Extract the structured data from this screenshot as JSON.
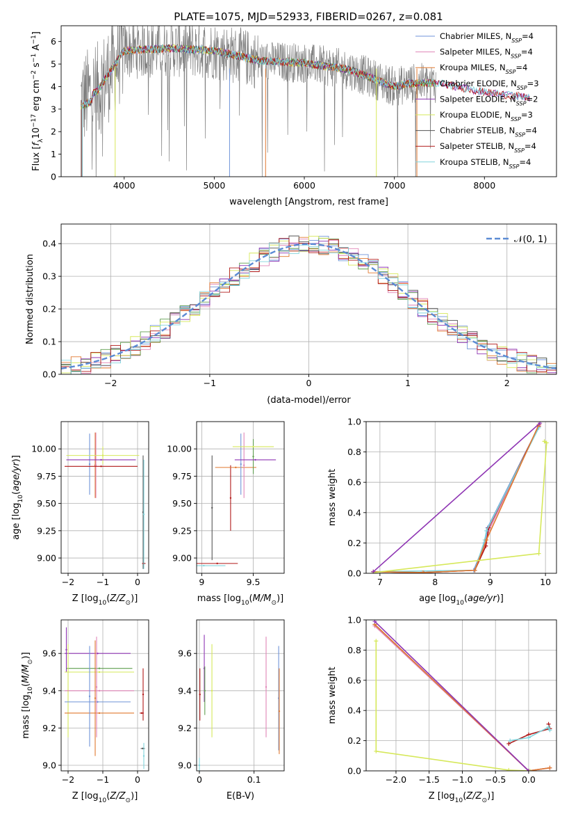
{
  "figure": {
    "title": "PLATE=1075, MJD=52933, FIBERID=0267, z=0.081"
  },
  "chart_data": [
    {
      "id": "spectrum",
      "type": "line",
      "xlabel": "wavelength [Angstrom, rest frame]",
      "ylabel": "Flux [f_λ 10^-17 erg cm^-2 s^-1 A^-1]",
      "xlim": [
        3300,
        8800
      ],
      "ylim": [
        0,
        6.7
      ],
      "xticks": [
        4000,
        5000,
        6000,
        7000,
        8000
      ],
      "yticks": [
        0,
        1,
        2,
        3,
        4,
        5,
        6
      ],
      "grid": false,
      "legend_position": "right",
      "data_color": "#808080",
      "observed_range": [
        3520,
        7460
      ],
      "model_range": [
        3520,
        8500
      ],
      "model_knots": {
        "x": [
          3520,
          3700,
          4000,
          4500,
          5000,
          5500,
          6000,
          6500,
          7000,
          7200,
          7500,
          8000,
          8500
        ],
        "y": [
          3.4,
          3.8,
          5.6,
          5.7,
          5.6,
          5.15,
          5.05,
          4.75,
          4.0,
          4.15,
          4.15,
          3.75,
          3.5
        ]
      },
      "series": [
        {
          "name": "Chabrier MILES, N_SSP=4",
          "color": "#6f93d8"
        },
        {
          "name": "Salpeter MILES, N_SSP=4",
          "color": "#e085b7"
        },
        {
          "name": "Kroupa MILES, N_SSP=4",
          "color": "#e0782f"
        },
        {
          "name": "Chabrier ELODIE, N_SSP=3",
          "color": "#5f9e4f"
        },
        {
          "name": "Salpeter ELODIE, N_SSP=2",
          "color": "#8e34b3"
        },
        {
          "name": "Kroupa ELODIE, N_SSP=3",
          "color": "#d6e85a"
        },
        {
          "name": "Chabrier STELIB, N_SSP=4",
          "color": "#555555"
        },
        {
          "name": "Salpeter STELIB, N_SSP=4",
          "color": "#b01818"
        },
        {
          "name": "Kroupa STELIB, N_SSP=4",
          "color": "#80d4dc"
        }
      ]
    },
    {
      "id": "residuals",
      "type": "line",
      "xlabel": "(data-model)/error",
      "ylabel": "Normed distribution",
      "xlim": [
        -2.5,
        2.5
      ],
      "ylim": [
        0,
        0.46
      ],
      "xticks": [
        -2,
        -1,
        0,
        1,
        2
      ],
      "yticks": [
        0.0,
        0.1,
        0.2,
        0.3,
        0.4
      ],
      "grid": true,
      "legend_position": "top-right",
      "gaussian_label": "𝒩(0, 1)",
      "gaussian_color": "#5b8bd4",
      "bin_width": 0.1
    },
    {
      "id": "age_vs_Z",
      "type": "scatter",
      "xlabel": "Z [log10(Z/Z⊙)]",
      "ylabel": "age [log10(age/yr)]",
      "xlim": [
        -2.2,
        0.32
      ],
      "ylim": [
        8.86,
        10.25
      ],
      "xticks": [
        -2,
        -1,
        0
      ],
      "yticks": [
        9.0,
        9.25,
        9.5,
        9.75,
        10.0
      ],
      "ytick_labels": [
        "9.00",
        "9.25",
        "9.50",
        "9.75",
        "10.00"
      ],
      "grid": true,
      "points": [
        {
          "x": -1.38,
          "xerr": 0,
          "y": 9.86,
          "yerr": 0.28,
          "color": "#6f93d8"
        },
        {
          "x": -1.22,
          "xerr": 0,
          "y": 9.85,
          "yerr": 0.3,
          "color": "#e0782f"
        },
        {
          "x": -1.2,
          "xerr": 0,
          "y": 9.85,
          "yerr": 0.3,
          "color": "#e085b7"
        },
        {
          "x": -1.05,
          "xerr": 1.05,
          "y": 9.84,
          "yerr": 0,
          "color": "#b01818"
        },
        {
          "x": -1.0,
          "xerr": 1.05,
          "y": 9.94,
          "yerr": 0.08,
          "color": "#d6e85a"
        },
        {
          "x": -1.05,
          "xerr": 1.0,
          "y": 9.9,
          "yerr": 0,
          "color": "#8e34b3"
        },
        {
          "x": 0.16,
          "xerr": 0,
          "y": 9.42,
          "yerr": 0.52,
          "color": "#555555"
        },
        {
          "x": 0.18,
          "xerr": 0.05,
          "y": 8.95,
          "yerr": 0,
          "color": "#b01818"
        },
        {
          "x": 0.18,
          "xerr": 0,
          "y": 9.4,
          "yerr": 0.5,
          "color": "#80d4dc"
        }
      ]
    },
    {
      "id": "age_vs_mass",
      "type": "scatter",
      "xlabel": "mass [log10(M/M⊙)]",
      "ylabel": "",
      "xlim": [
        8.95,
        9.8
      ],
      "ylim": [
        8.86,
        10.25
      ],
      "xticks": [
        9.0,
        9.5
      ],
      "yticks": [
        9.0,
        9.25,
        9.5,
        9.75,
        10.0
      ],
      "ytick_labels": [
        "9.00",
        "9.25",
        "9.50",
        "9.75",
        "10.00"
      ],
      "grid": true,
      "points": [
        {
          "x": 9.1,
          "xerr": 0,
          "y": 9.46,
          "yerr": 0.48,
          "color": "#555555"
        },
        {
          "x": 9.28,
          "xerr": 0,
          "y": 9.55,
          "yerr": 0.3,
          "color": "#b01818"
        },
        {
          "x": 9.15,
          "xerr": 0.2,
          "y": 8.95,
          "yerr": 0,
          "color": "#b01818"
        },
        {
          "x": 9.02,
          "xerr": 0.21,
          "y": 8.93,
          "yerr": 0,
          "color": "#80d4dc"
        },
        {
          "x": 9.33,
          "xerr": 0.2,
          "y": 9.83,
          "yerr": 0,
          "color": "#e0782f"
        },
        {
          "x": 9.38,
          "xerr": 0,
          "y": 9.86,
          "yerr": 0.28,
          "color": "#6f93d8"
        },
        {
          "x": 9.41,
          "xerr": 0,
          "y": 9.85,
          "yerr": 0.3,
          "color": "#e085b7"
        },
        {
          "x": 9.5,
          "xerr": 0,
          "y": 9.93,
          "yerr": 0.16,
          "color": "#5f9e4f"
        },
        {
          "x": 9.52,
          "xerr": 0.2,
          "y": 9.9,
          "yerr": 0,
          "color": "#8e34b3"
        },
        {
          "x": 9.5,
          "xerr": 0.2,
          "y": 10.02,
          "yerr": 0,
          "color": "#d6e85a"
        }
      ]
    },
    {
      "id": "massweight_vs_age",
      "type": "line",
      "xlabel": "age [log10(age/yr)]",
      "ylabel": "mass weight",
      "xlim": [
        6.75,
        10.2
      ],
      "ylim": [
        0,
        1.0
      ],
      "xticks": [
        7,
        8,
        9,
        10
      ],
      "yticks": [
        0.0,
        0.2,
        0.4,
        0.6,
        0.8,
        1.0
      ],
      "grid": true,
      "series": [
        {
          "color": "#6f93d8",
          "x": [
            6.88,
            7.75,
            8.7,
            8.9,
            8.95,
            9.88
          ],
          "y": [
            0.01,
            0.005,
            0.02,
            0.2,
            0.3,
            0.97
          ]
        },
        {
          "color": "#e085b7",
          "x": [
            6.88,
            7.75,
            8.72,
            8.92,
            8.97,
            9.89
          ],
          "y": [
            0.01,
            0.005,
            0.02,
            0.2,
            0.28,
            0.98
          ]
        },
        {
          "color": "#b01818",
          "x": [
            6.88,
            7.8,
            8.72,
            8.92,
            8.97,
            9.88
          ],
          "y": [
            0.01,
            0.005,
            0.02,
            0.18,
            0.3,
            0.97
          ]
        },
        {
          "color": "#80d4dc",
          "x": [
            6.88,
            8.72,
            8.9,
            8.93,
            9.88
          ],
          "y": [
            0.01,
            0.02,
            0.22,
            0.28,
            0.96
          ]
        },
        {
          "color": "#e0782f",
          "x": [
            6.88,
            7.78,
            8.72,
            8.93,
            9.88
          ],
          "y": [
            0.01,
            0.005,
            0.02,
            0.22,
            0.98
          ]
        },
        {
          "color": "#d6e85a",
          "x": [
            6.9,
            9.88,
            10.02,
            9.98
          ],
          "y": [
            0.005,
            0.13,
            0.86,
            0.87
          ]
        },
        {
          "color": "#8e34b3",
          "x": [
            6.88,
            9.9
          ],
          "y": [
            0.01,
            0.99
          ]
        }
      ]
    },
    {
      "id": "mass_vs_Z",
      "type": "scatter",
      "xlabel": "Z [log10(Z/Z⊙)]",
      "ylabel": "mass [log10(M/M⊙)]",
      "xlim": [
        -2.2,
        0.32
      ],
      "ylim": [
        8.97,
        9.78
      ],
      "xticks": [
        -2,
        -1,
        0
      ],
      "yticks": [
        9.0,
        9.2,
        9.4,
        9.6
      ],
      "ytick_labels": [
        "9.0",
        "9.2",
        "9.4",
        "9.6"
      ],
      "grid": true,
      "points": [
        {
          "x": -2.05,
          "xerr": 0,
          "y": 9.62,
          "yerr": 0.12,
          "color": "#8e34b3"
        },
        {
          "x": -1.15,
          "xerr": 0.95,
          "y": 9.6,
          "yerr": 0,
          "color": "#8e34b3"
        },
        {
          "x": -1.1,
          "xerr": 0.95,
          "y": 9.52,
          "yerr": 0,
          "color": "#5f9e4f"
        },
        {
          "x": -1.1,
          "xerr": 1.0,
          "y": 9.5,
          "yerr": 0,
          "color": "#d6e85a"
        },
        {
          "x": -2.0,
          "xerr": 0,
          "y": 9.4,
          "yerr": 0.25,
          "color": "#d6e85a"
        },
        {
          "x": -1.1,
          "xerr": 1.0,
          "y": 9.4,
          "yerr": 0,
          "color": "#e085b7"
        },
        {
          "x": -1.15,
          "xerr": 0.95,
          "y": 9.34,
          "yerr": 0,
          "color": "#6f93d8"
        },
        {
          "x": -1.1,
          "xerr": 1.0,
          "y": 9.28,
          "yerr": 0,
          "color": "#e0782f"
        },
        {
          "x": -1.38,
          "xerr": 0,
          "y": 9.37,
          "yerr": 0.27,
          "color": "#6f93d8"
        },
        {
          "x": -1.22,
          "xerr": 0,
          "y": 9.36,
          "yerr": 0.31,
          "color": "#e0782f"
        },
        {
          "x": -1.18,
          "xerr": 0,
          "y": 9.42,
          "yerr": 0.27,
          "color": "#e085b7"
        },
        {
          "x": 0.12,
          "xerr": 0.06,
          "y": 9.28,
          "yerr": 0,
          "color": "#b01818"
        },
        {
          "x": 0.16,
          "xerr": 0,
          "y": 9.38,
          "yerr": 0.14,
          "color": "#b01818"
        },
        {
          "x": 0.15,
          "xerr": 0.06,
          "y": 9.09,
          "yerr": 0,
          "color": "#555555"
        },
        {
          "x": 0.18,
          "xerr": 0,
          "y": 9.05,
          "yerr": 0.07,
          "color": "#80d4dc"
        }
      ]
    },
    {
      "id": "mass_vs_ebv",
      "type": "scatter",
      "xlabel": "E(B-V)",
      "ylabel": "",
      "xlim": [
        -0.005,
        0.155
      ],
      "ylim": [
        8.97,
        9.78
      ],
      "xticks": [
        0.0,
        0.1
      ],
      "yticks": [
        9.0,
        9.2,
        9.4,
        9.6
      ],
      "ytick_labels": [
        "9.0",
        "9.2",
        "9.4",
        "9.6"
      ],
      "grid": true,
      "points": [
        {
          "x": 0.0,
          "xerr": 0,
          "y": 9.0,
          "yerr": 0.04,
          "color": "#80d4dc"
        },
        {
          "x": 0.001,
          "xerr": 0,
          "y": 9.38,
          "yerr": 0.14,
          "color": "#b01818"
        },
        {
          "x": 0.009,
          "xerr": 0,
          "y": 9.52,
          "yerr": 0.18,
          "color": "#8e34b3"
        },
        {
          "x": 0.01,
          "xerr": 0,
          "y": 9.4,
          "yerr": 0.13,
          "color": "#5f9e4f"
        },
        {
          "x": 0.023,
          "xerr": 0,
          "y": 9.4,
          "yerr": 0.25,
          "color": "#d6e85a"
        },
        {
          "x": 0.122,
          "xerr": 0,
          "y": 9.42,
          "yerr": 0.27,
          "color": "#e085b7"
        },
        {
          "x": 0.145,
          "xerr": 0,
          "y": 9.36,
          "yerr": 0.28,
          "color": "#6f93d8"
        },
        {
          "x": 0.146,
          "xerr": 0,
          "y": 9.29,
          "yerr": 0.23,
          "color": "#e0782f"
        }
      ]
    },
    {
      "id": "massweight_vs_Z",
      "type": "line",
      "xlabel": "Z [log10(Z/Z⊙)]",
      "ylabel": "mass weight",
      "xlim": [
        -2.45,
        0.42
      ],
      "ylim": [
        0,
        1.0
      ],
      "xticks": [
        -2.0,
        -1.5,
        -1.0,
        -0.5,
        0.0
      ],
      "xtick_labels": [
        "−2.0",
        "−1.5",
        "−1.0",
        "−0.5",
        "0.0"
      ],
      "yticks": [
        0.0,
        0.2,
        0.4,
        0.6,
        0.8,
        1.0
      ],
      "grid": true,
      "series": [
        {
          "color": "#6f93d8",
          "x": [
            -2.32,
            0.0,
            0.32
          ],
          "y": [
            0.97,
            0.0,
            0.02
          ]
        },
        {
          "color": "#e085b7",
          "x": [
            -2.32,
            0.0,
            0.32
          ],
          "y": [
            0.96,
            0.0,
            0.02
          ]
        },
        {
          "color": "#e0782f",
          "x": [
            -2.32,
            0.0,
            0.32
          ],
          "y": [
            0.97,
            0.0,
            0.02
          ]
        },
        {
          "color": "#b01818",
          "x": [
            -0.3,
            0.0,
            0.32,
            0.3
          ],
          "y": [
            0.18,
            0.24,
            0.28,
            0.31
          ]
        },
        {
          "color": "#80d4dc",
          "x": [
            -0.28,
            0.0,
            0.3,
            0.32
          ],
          "y": [
            0.2,
            0.22,
            0.29,
            0.27
          ]
        },
        {
          "color": "#d6e85a",
          "x": [
            -2.3,
            -2.3,
            -0.3,
            0.02
          ],
          "y": [
            0.86,
            0.13,
            0.005,
            0.0
          ]
        },
        {
          "color": "#8e34b3",
          "x": [
            -2.32,
            0.0
          ],
          "y": [
            0.99,
            0.0
          ]
        }
      ]
    }
  ]
}
